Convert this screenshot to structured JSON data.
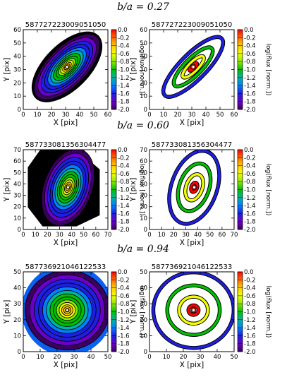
{
  "rows": [
    {
      "label": "b/a = 0.27",
      "panels": [
        {
          "title": "587727223009051050",
          "xlabel": "X [pix]",
          "ylabel": "Y [pix]",
          "xlim": [
            0,
            60
          ],
          "ylim": [
            0,
            60
          ],
          "xticks": [
            "0",
            "10",
            "20",
            "30",
            "40",
            "50",
            "60"
          ],
          "yticks": [
            "0",
            "10",
            "20",
            "30",
            "40",
            "50",
            "60"
          ]
        },
        {
          "title": "587727223009051050",
          "xlabel": "X [pix]",
          "ylabel": "Y [pix]",
          "xlim": [
            0,
            60
          ],
          "ylim": [
            0,
            60
          ],
          "xticks": [
            "0",
            "10",
            "20",
            "30",
            "40",
            "50",
            "60"
          ],
          "yticks": [
            "0",
            "10",
            "20",
            "30",
            "40",
            "50",
            "60"
          ]
        }
      ]
    },
    {
      "label": "b/a = 0.60",
      "panels": [
        {
          "title": "587733081356304477",
          "xlabel": "X [pix]",
          "ylabel": "Y [pix]",
          "xlim": [
            0,
            70
          ],
          "ylim": [
            0,
            70
          ],
          "xticks": [
            "0",
            "10",
            "20",
            "30",
            "40",
            "50",
            "60",
            "70"
          ],
          "yticks": [
            "0",
            "10",
            "20",
            "30",
            "40",
            "50",
            "60",
            "70"
          ]
        },
        {
          "title": "587733081356304477",
          "xlabel": "X [pix]",
          "ylabel": "Y [pix]",
          "xlim": [
            0,
            70
          ],
          "ylim": [
            0,
            70
          ],
          "xticks": [
            "0",
            "10",
            "20",
            "30",
            "40",
            "50",
            "60",
            "70"
          ],
          "yticks": [
            "0",
            "10",
            "20",
            "30",
            "40",
            "50",
            "60",
            "70"
          ]
        }
      ]
    },
    {
      "label": "b/a = 0.94",
      "panels": [
        {
          "title": "587736921046122533",
          "xlabel": "X [pix]",
          "ylabel": "Y [pix]",
          "xlim": [
            0,
            50
          ],
          "ylim": [
            0,
            50
          ],
          "xticks": [
            "0",
            "10",
            "20",
            "30",
            "40",
            "50"
          ],
          "yticks": [
            "0",
            "10",
            "20",
            "30",
            "40",
            "50"
          ]
        },
        {
          "title": "587736921046122533",
          "xlabel": "X [pix]",
          "ylabel": "Y [pix]",
          "xlim": [
            0,
            50
          ],
          "ylim": [
            0,
            50
          ],
          "xticks": [
            "0",
            "10",
            "20",
            "30",
            "40",
            "50"
          ],
          "yticks": [
            "0",
            "10",
            "20",
            "30",
            "40",
            "50"
          ]
        }
      ]
    }
  ],
  "colorbar": {
    "label": "log(flux [norm.])",
    "ticks": [
      "0.0",
      "-0.2",
      "-0.4",
      "-0.6",
      "-0.8",
      "-1.0",
      "-1.2",
      "-1.4",
      "-1.6",
      "-1.8",
      "-2.0"
    ],
    "range": [
      -2.0,
      0.0
    ],
    "colors": [
      "#ff0000",
      "#ff6a00",
      "#ffcc00",
      "#f2ff00",
      "#8fe600",
      "#00c000",
      "#00b3a0",
      "#0080ff",
      "#1f1fe0",
      "#6a00c8",
      "#3b0060"
    ]
  },
  "chart_data": [
    {
      "type": "heatmap",
      "title": "587727223009051050",
      "xlabel": "X [pix]",
      "ylabel": "Y [pix]",
      "xlim": [
        0,
        60
      ],
      "ylim": [
        0,
        60
      ],
      "center": [
        31,
        32
      ],
      "axis_ratio": 0.27,
      "position_angle_deg": -45,
      "semi_major_pix": 30,
      "value_range": [
        -2.0,
        0.0
      ],
      "background": "masked/black"
    },
    {
      "type": "heatmap",
      "title": "587727223009051050",
      "xlabel": "X [pix]",
      "ylabel": "Y [pix]",
      "xlim": [
        0,
        60
      ],
      "ylim": [
        0,
        60
      ],
      "center": [
        31,
        32
      ],
      "axis_ratio": 0.27,
      "position_angle_deg": -45,
      "semi_major_pix": 30,
      "rings": [
        -1.6,
        -1.0,
        -0.5,
        0.0
      ]
    },
    {
      "type": "heatmap",
      "title": "587733081356304477",
      "xlabel": "X [pix]",
      "ylabel": "Y [pix]",
      "xlim": [
        0,
        70
      ],
      "ylim": [
        0,
        70
      ],
      "center": [
        37,
        37
      ],
      "axis_ratio": 0.6,
      "position_angle_deg": -70,
      "semi_major_pix": 33,
      "value_range": [
        -2.0,
        0.0
      ],
      "background": "black"
    },
    {
      "type": "heatmap",
      "title": "587733081356304477",
      "xlabel": "X [pix]",
      "ylabel": "Y [pix]",
      "xlim": [
        0,
        70
      ],
      "ylim": [
        0,
        70
      ],
      "center": [
        37,
        37
      ],
      "axis_ratio": 0.6,
      "position_angle_deg": -70,
      "semi_major_pix": 33,
      "rings": [
        -1.6,
        -1.0,
        -0.5,
        0.0
      ]
    },
    {
      "type": "heatmap",
      "title": "587736921046122533",
      "xlabel": "X [pix]",
      "ylabel": "Y [pix]",
      "xlim": [
        0,
        50
      ],
      "ylim": [
        0,
        50
      ],
      "center": [
        26,
        26
      ],
      "axis_ratio": 0.94,
      "position_angle_deg": 0,
      "semi_major_pix": 25,
      "value_range": [
        -2.0,
        0.0
      ],
      "background": "blue"
    },
    {
      "type": "heatmap",
      "title": "587736921046122533",
      "xlabel": "X [pix]",
      "ylabel": "Y [pix]",
      "xlim": [
        0,
        50
      ],
      "ylim": [
        0,
        50
      ],
      "center": [
        26,
        26
      ],
      "axis_ratio": 0.94,
      "position_angle_deg": 0,
      "semi_major_pix": 25,
      "rings": [
        -1.6,
        -1.0,
        -0.5,
        0.0
      ]
    }
  ]
}
